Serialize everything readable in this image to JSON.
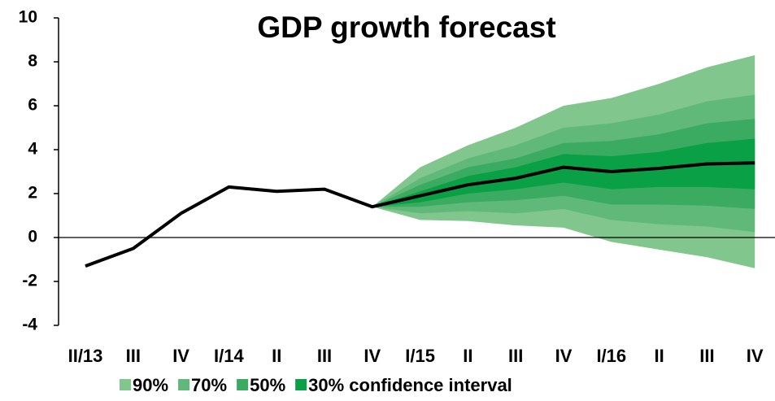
{
  "chart_data": {
    "type": "fan",
    "title": "GDP growth forecast",
    "categories": [
      "II/13",
      "III",
      "IV",
      "I/14",
      "II",
      "III",
      "IV",
      "I/15",
      "II",
      "III",
      "IV",
      "I/16",
      "II",
      "III",
      "IV"
    ],
    "values": [
      -1.3,
      -0.5,
      1.1,
      2.3,
      2.1,
      2.2,
      1.4,
      1.9,
      2.4,
      2.7,
      3.2,
      3.0,
      3.15,
      3.35,
      3.4
    ],
    "line_color": "#000000",
    "bands": [
      {
        "name": "90%",
        "color": "#80c68d",
        "upper": [
          null,
          null,
          null,
          null,
          null,
          null,
          1.4,
          3.2,
          4.2,
          5.0,
          6.0,
          6.35,
          7.0,
          7.75,
          8.3
        ],
        "lower": [
          null,
          null,
          null,
          null,
          null,
          null,
          1.4,
          0.8,
          0.75,
          0.55,
          0.45,
          -0.2,
          -0.55,
          -0.9,
          -1.4
        ]
      },
      {
        "name": "70%",
        "color": "#60b979",
        "upper": [
          null,
          null,
          null,
          null,
          null,
          null,
          1.4,
          2.7,
          3.6,
          4.2,
          5.0,
          5.2,
          5.6,
          6.2,
          6.5
        ],
        "lower": [
          null,
          null,
          null,
          null,
          null,
          null,
          1.4,
          1.1,
          1.2,
          1.1,
          1.3,
          0.8,
          0.6,
          0.5,
          0.25
        ]
      },
      {
        "name": "50%",
        "color": "#3aab61",
        "upper": [
          null,
          null,
          null,
          null,
          null,
          null,
          1.4,
          2.4,
          3.2,
          3.6,
          4.3,
          4.4,
          4.7,
          5.2,
          5.4
        ],
        "lower": [
          null,
          null,
          null,
          null,
          null,
          null,
          1.4,
          1.4,
          1.6,
          1.7,
          1.9,
          1.5,
          1.5,
          1.45,
          1.3
        ]
      },
      {
        "name": "30% confidence interval",
        "color": "#0aa046",
        "upper": [
          null,
          null,
          null,
          null,
          null,
          null,
          1.4,
          2.1,
          2.8,
          3.2,
          3.8,
          3.7,
          3.9,
          4.3,
          4.5
        ],
        "lower": [
          null,
          null,
          null,
          null,
          null,
          null,
          1.4,
          1.6,
          2.0,
          2.2,
          2.5,
          2.2,
          2.3,
          2.3,
          2.2
        ]
      }
    ],
    "ylim": [
      -4,
      10
    ],
    "yticks": [
      -4,
      -2,
      0,
      2,
      4,
      6,
      8,
      10
    ]
  }
}
